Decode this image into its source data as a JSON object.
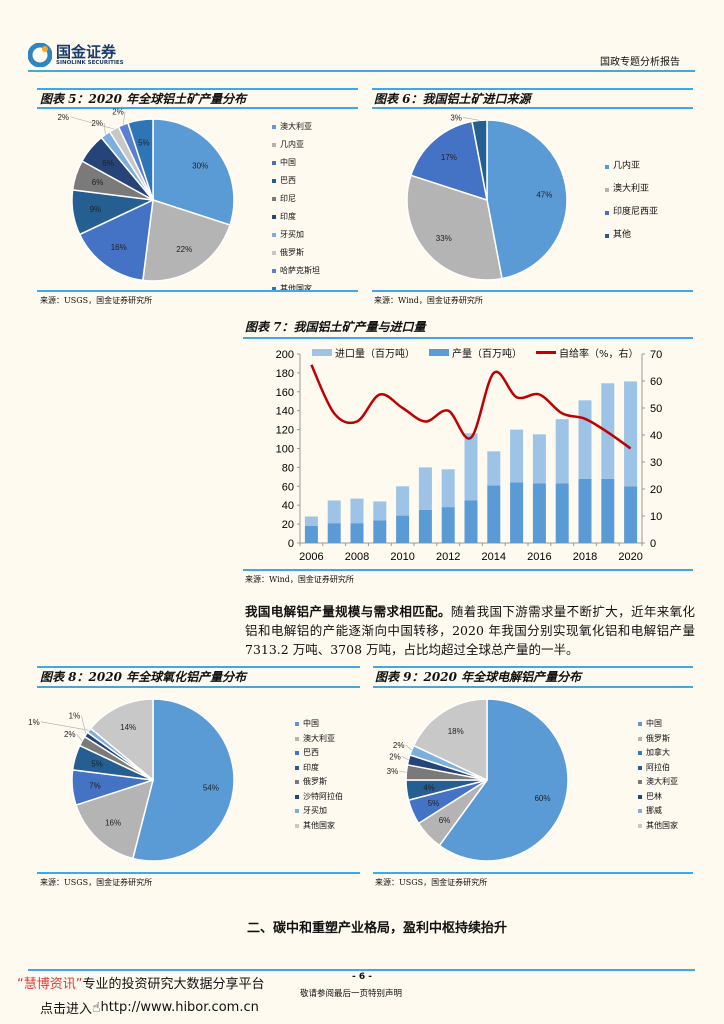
{
  "header": {
    "logo_cn": "国金证券",
    "logo_en": "SINOLINK SECURITIES",
    "report_type": "国政专题分析报告"
  },
  "colors": {
    "accent": "#3fa9e8",
    "line_red": "#c00000",
    "import_bar": "#9dc3e6",
    "prod_bar": "#5b9bd5"
  },
  "fig5": {
    "title": "图表 5：2020 年全球铝土矿产量分布",
    "source": "来源：USGS，国金证券研究所"
  },
  "fig6": {
    "title": "图表 6：我国铝土矿进口来源",
    "source": "来源：Wind，国金证券研究所"
  },
  "fig7": {
    "title": "图表 7：我国铝土矿产量与进口量",
    "source": "来源：Wind，国金证券研究所"
  },
  "fig8": {
    "title": "图表 8：2020 年全球氧化铝产量分布",
    "source": "来源：USGS，国金证券研究所"
  },
  "fig9": {
    "title": "图表 9：2020 年全球电解铝产量分布",
    "source": "来源：USGS，国金证券研究所"
  },
  "paragraph": {
    "lead": "我国电解铝产量规模与需求相匹配。",
    "body": "随着我国下游需求量不断扩大，近年来氧化铝和电解铝的产能逐渐向中国转移，2020 年我国分别实现氧化铝和电解铝产量 7313.2 万吨、3708 万吨，占比均超过全球总产量的一半。"
  },
  "section_heading": "二、碳中和重塑产业格局，盈利中枢持续抬升",
  "footer": {
    "brand": "“慧博资讯”",
    "slogan": "专业的投资研究大数据分享平台",
    "link_prefix": "点击进入",
    "link": "http://www.hibor.com.cn",
    "page": "- 6 -",
    "disclaimer": "敬请参阅最后一页特别声明"
  },
  "chart_data": [
    {
      "id": "fig5",
      "type": "pie",
      "labels": [
        "澳大利亚",
        "几内亚",
        "中国",
        "巴西",
        "印尼",
        "印度",
        "牙买加",
        "俄罗斯",
        "哈萨克斯坦",
        "其他国家"
      ],
      "values": [
        30,
        22,
        16,
        9,
        6,
        6,
        2,
        2,
        2,
        5
      ],
      "colors": [
        "#5b9bd5",
        "#b4b4b4",
        "#4472c4",
        "#255e91",
        "#7a7a7a",
        "#264478",
        "#7cafdd",
        "#c8c8c8",
        "#5b7fd1",
        "#2e75b6"
      ],
      "legend": "right"
    },
    {
      "id": "fig6",
      "type": "pie",
      "labels": [
        "几内亚",
        "澳大利亚",
        "印度尼西亚",
        "其他"
      ],
      "values": [
        47,
        33,
        17,
        3
      ],
      "colors": [
        "#5b9bd5",
        "#b4b4b4",
        "#4472c4",
        "#255e91"
      ],
      "legend": "right"
    },
    {
      "id": "fig7",
      "type": "bar+line",
      "categories": [
        2006,
        2007,
        2008,
        2009,
        2010,
        2011,
        2012,
        2013,
        2014,
        2015,
        2016,
        2017,
        2018,
        2019,
        2020
      ],
      "x_tick_labels": [
        "2006",
        "2008",
        "2010",
        "2012",
        "2014",
        "2016",
        "2018",
        "2020"
      ],
      "series": [
        {
          "name": "进口量（百万吨）",
          "type": "stacked-bar",
          "axis": "left",
          "values": [
            10,
            24,
            26,
            20,
            31,
            45,
            40,
            71,
            36,
            56,
            52,
            68,
            83,
            101,
            111
          ]
        },
        {
          "name": "产量（百万吨）",
          "type": "stacked-bar",
          "axis": "left",
          "values": [
            18,
            21,
            21,
            24,
            29,
            35,
            38,
            45,
            61,
            64,
            63,
            63,
            68,
            68,
            60
          ]
        },
        {
          "name": "自给率（%，右）",
          "type": "line",
          "axis": "right",
          "values": [
            66,
            48,
            45,
            55,
            50,
            45,
            49,
            39,
            63,
            54,
            55,
            48,
            46,
            41,
            35
          ]
        }
      ],
      "ylim_left": [
        0,
        200
      ],
      "yticks_left": [
        "0",
        "20",
        "40",
        "60",
        "80",
        "100",
        "120",
        "140",
        "160",
        "180",
        "200"
      ],
      "ylim_right": [
        0,
        70
      ],
      "yticks_right": [
        "0",
        "10",
        "20",
        "30",
        "40",
        "50",
        "60",
        "70"
      ],
      "legend": "top",
      "grid": false
    },
    {
      "id": "fig8",
      "type": "pie",
      "labels": [
        "中国",
        "澳大利亚",
        "巴西",
        "印度",
        "俄罗斯",
        "沙特阿拉伯",
        "牙买加",
        "其他国家"
      ],
      "values": [
        54,
        16,
        7,
        5,
        2,
        1,
        1,
        14
      ],
      "colors": [
        "#5b9bd5",
        "#b4b4b4",
        "#4472c4",
        "#255e91",
        "#7a7a7a",
        "#264478",
        "#7cafdd",
        "#c8c8c8"
      ],
      "legend": "right"
    },
    {
      "id": "fig9",
      "type": "pie",
      "labels": [
        "中国",
        "俄罗斯",
        "加拿大",
        "阿拉伯",
        "澳大利亚",
        "巴林",
        "挪威",
        "其他国家"
      ],
      "values": [
        60,
        6,
        5,
        4,
        3,
        2,
        2,
        18
      ],
      "colors": [
        "#5b9bd5",
        "#b4b4b4",
        "#4472c4",
        "#255e91",
        "#7a7a7a",
        "#264478",
        "#7cafdd",
        "#c8c8c8"
      ],
      "legend": "right"
    }
  ]
}
